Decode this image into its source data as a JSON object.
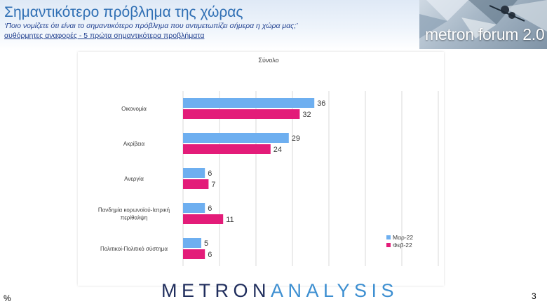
{
  "header": {
    "title": "Σημαντικότερο πρόβλημα της χώρας",
    "subtitle": "‘Ποιο νομίζετε ότι  είναι το σημαντικότερο πρόβλημα που αντιμετωπίζει σήμερα η χώρα μας;’",
    "note": "αυθόρμητες αναφορές - 5 πρώτα σημαντικότερα προβλήματα"
  },
  "banner": {
    "text": "metron forum 2.0"
  },
  "footer": {
    "percent_symbol": "%",
    "logo_bold": "METRON",
    "logo_light": "ANALYSIS",
    "page_number": "3"
  },
  "colors": {
    "series_mar": "#6eaff0",
    "series_feb": "#e31c79",
    "grid": "#d9d9d9",
    "text": "#3b3b3b"
  },
  "chart_data": {
    "type": "bar",
    "orientation": "horizontal",
    "title": "Σύνολο",
    "categories": [
      "Οικονομία",
      "Ακρίβεια",
      "Ανεργία",
      "Πανδημία κορωνοϊού-Ιατρική περίθαλψη",
      "Πολιτικοί-Πολιτικό σύστημα"
    ],
    "category_lines": [
      [
        "Οικονομία"
      ],
      [
        "Ακρίβεια"
      ],
      [
        "Ανεργία"
      ],
      [
        "Πανδημία κορωνοϊού-Ιατρική",
        "περίθαλψη"
      ],
      [
        "Πολιτικοί-Πολιτικό σύστημα"
      ]
    ],
    "series": [
      {
        "name": "Μαρ-22",
        "values": [
          36,
          29,
          6,
          6,
          5
        ]
      },
      {
        "name": "Φεβ-22",
        "values": [
          32,
          24,
          7,
          11,
          6
        ]
      }
    ],
    "xlim": [
      0,
      70
    ],
    "grid_step": 10,
    "legend": "bottom-right",
    "xlabel": "",
    "ylabel": ""
  }
}
